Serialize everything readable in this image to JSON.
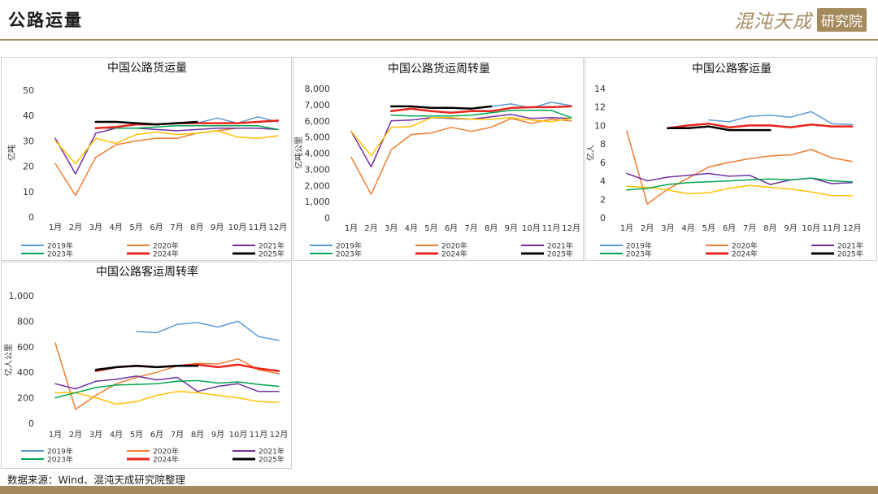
{
  "page": {
    "title": "公路运量",
    "logo_text": "混沌天成",
    "logo_seal": "研究院",
    "source": "数据来源：Wind、混沌天成研究院整理",
    "brand_color": "#a48a5c"
  },
  "chart_data": [
    {
      "type": "line",
      "title": "中国公路货运量",
      "ylabel": "亿吨",
      "ylim": [
        0,
        50
      ],
      "yticks": [
        0,
        10,
        20,
        30,
        40,
        50
      ],
      "ytick_labels": [
        "0",
        "10",
        "20",
        "30",
        "40",
        "50"
      ],
      "grid": false,
      "legend": "bottom",
      "categories": [
        "1月",
        "2月",
        "3月",
        "4月",
        "5月",
        "6月",
        "7月",
        "8月",
        "9月",
        "10月",
        "11月",
        "12月"
      ],
      "series": [
        {
          "name": "2019年",
          "color": "#5b9bd5",
          "width": 1.5,
          "values": [
            null,
            null,
            null,
            null,
            null,
            null,
            null,
            37,
            39,
            37,
            39.5,
            37.5
          ]
        },
        {
          "name": "2020年",
          "color": "#ed7d31",
          "width": 1.5,
          "values": [
            21,
            8.5,
            23.5,
            28.5,
            30,
            31,
            31,
            33,
            34,
            35,
            35,
            34.5
          ]
        },
        {
          "name": "2021年",
          "color": "#7030a0",
          "width": 1.5,
          "values": [
            31,
            17,
            33,
            35,
            35,
            34.5,
            34,
            34.5,
            35,
            35,
            35,
            34.5
          ]
        },
        {
          "name": "2022年",
          "color": "#ffc000",
          "width": 1.5,
          "values": [
            30,
            21,
            31,
            29,
            32.5,
            33.5,
            32.5,
            33,
            34,
            31.5,
            31,
            32
          ]
        },
        {
          "name": "2023年",
          "color": "#00a550",
          "width": 1.5,
          "values": [
            22,
            null,
            35,
            35,
            35,
            35.5,
            36,
            36,
            36,
            36,
            36,
            34.5
          ]
        },
        {
          "name": "2024年",
          "color": "#e8251d",
          "width": 2.5,
          "values": [
            null,
            null,
            35,
            35.5,
            36.5,
            36.5,
            37,
            37,
            37,
            37,
            37.5,
            38
          ]
        },
        {
          "name": "2025年",
          "color": "#000000",
          "width": 2.5,
          "values": [
            null,
            null,
            37.5,
            37.5,
            37,
            36.5,
            37,
            37.5,
            null,
            null,
            null,
            null
          ]
        }
      ]
    },
    {
      "type": "line",
      "title": "中国公路货运周转量",
      "ylabel": "亿吨公里",
      "ylim": [
        0,
        8000
      ],
      "yticks": [
        0,
        1000,
        2000,
        3000,
        4000,
        5000,
        6000,
        7000,
        8000
      ],
      "ytick_labels": [
        "0",
        "1,000",
        "2,000",
        "3,000",
        "4,000",
        "5,000",
        "6,000",
        "7,000",
        "8,000"
      ],
      "grid": false,
      "legend": "bottom",
      "categories": [
        "1月",
        "2月",
        "3月",
        "4月",
        "5月",
        "6月",
        "7月",
        "8月",
        "9月",
        "10月",
        "11月",
        "12月"
      ],
      "series": [
        {
          "name": "2019年",
          "color": "#5b9bd5",
          "width": 1.5,
          "values": [
            null,
            null,
            null,
            null,
            null,
            null,
            null,
            6900,
            7050,
            6800,
            7150,
            6950
          ]
        },
        {
          "name": "2020年",
          "color": "#ed7d31",
          "width": 1.5,
          "values": [
            3750,
            1450,
            4200,
            5150,
            5250,
            5600,
            5350,
            5600,
            6150,
            5850,
            6100,
            6000
          ]
        },
        {
          "name": "2021年",
          "color": "#7030a0",
          "width": 1.5,
          "values": [
            5350,
            3150,
            6000,
            6050,
            6200,
            6150,
            6100,
            6250,
            6400,
            6150,
            6200,
            6150
          ]
        },
        {
          "name": "2022年",
          "color": "#ffc000",
          "width": 1.5,
          "values": [
            5350,
            3850,
            5600,
            5650,
            6200,
            6200,
            6100,
            6100,
            6200,
            6050,
            5950,
            6150
          ]
        },
        {
          "name": "2023年",
          "color": "#00a550",
          "width": 1.5,
          "values": [
            4250,
            null,
            6350,
            6300,
            6300,
            6300,
            6350,
            6500,
            6650,
            6650,
            6650,
            6200
          ]
        },
        {
          "name": "2024年",
          "color": "#e8251d",
          "width": 2.5,
          "values": [
            null,
            null,
            6600,
            6750,
            6600,
            6500,
            6600,
            6600,
            6800,
            6850,
            6850,
            6900
          ]
        },
        {
          "name": "2025年",
          "color": "#000000",
          "width": 2.5,
          "values": [
            null,
            null,
            6900,
            6900,
            6800,
            6800,
            6750,
            6900,
            null,
            null,
            null,
            null
          ]
        }
      ]
    },
    {
      "type": "line",
      "title": "中国公路客运量",
      "ylabel": "亿人",
      "ylim": [
        0,
        14
      ],
      "yticks": [
        0,
        2,
        4,
        6,
        8,
        10,
        12,
        14
      ],
      "ytick_labels": [
        "0",
        "2",
        "4",
        "6",
        "8",
        "10",
        "12",
        "14"
      ],
      "grid": false,
      "legend": "bottom",
      "categories": [
        "1月",
        "2月",
        "3月",
        "4月",
        "5月",
        "6月",
        "7月",
        "8月",
        "9月",
        "10月",
        "11月",
        "12月"
      ],
      "series": [
        {
          "name": "2019年",
          "color": "#5b9bd5",
          "width": 1.5,
          "values": [
            null,
            null,
            null,
            null,
            10.6,
            10.4,
            11,
            11.1,
            10.9,
            11.5,
            10.2,
            10.1
          ]
        },
        {
          "name": "2020年",
          "color": "#ed7d31",
          "width": 1.5,
          "values": [
            9.4,
            1.5,
            3.1,
            4.3,
            5.5,
            6,
            6.4,
            6.7,
            6.8,
            7.4,
            6.5,
            6.1
          ]
        },
        {
          "name": "2021年",
          "color": "#7030a0",
          "width": 1.5,
          "values": [
            4.8,
            4,
            4.4,
            4.6,
            4.8,
            4.5,
            4.6,
            3.6,
            4.1,
            4.3,
            3.7,
            3.8
          ]
        },
        {
          "name": "2022年",
          "color": "#ffc000",
          "width": 1.5,
          "values": [
            3.4,
            3.3,
            3,
            2.6,
            2.7,
            3.2,
            3.5,
            3.3,
            3.1,
            2.8,
            2.4,
            2.4
          ]
        },
        {
          "name": "2023年",
          "color": "#00a550",
          "width": 1.5,
          "values": [
            3,
            3.2,
            3.6,
            3.8,
            3.9,
            4,
            4.1,
            4.2,
            4.1,
            4.3,
            4,
            3.9
          ]
        },
        {
          "name": "2024年",
          "color": "#e8251d",
          "width": 2.5,
          "values": [
            null,
            null,
            9.7,
            10,
            10.2,
            9.8,
            10,
            10,
            9.8,
            10.1,
            9.9,
            9.9
          ]
        },
        {
          "name": "2025年",
          "color": "#000000",
          "width": 2.5,
          "values": [
            null,
            null,
            9.7,
            9.7,
            9.9,
            9.5,
            9.5,
            9.5,
            null,
            null,
            null,
            null
          ]
        }
      ]
    },
    {
      "type": "line",
      "title": "中国公路客运周转率",
      "ylabel": "亿人公里",
      "ylim": [
        0,
        1000
      ],
      "yticks": [
        0,
        200,
        400,
        600,
        800,
        1000
      ],
      "ytick_labels": [
        "0",
        "200",
        "400",
        "600",
        "800",
        "1,000"
      ],
      "grid": false,
      "legend": "bottom",
      "categories": [
        "1月",
        "2月",
        "3月",
        "4月",
        "5月",
        "6月",
        "7月",
        "8月",
        "9月",
        "10月",
        "11月",
        "12月"
      ],
      "series": [
        {
          "name": "2019年",
          "color": "#5b9bd5",
          "width": 1.5,
          "values": [
            null,
            null,
            null,
            null,
            720,
            710,
            775,
            790,
            755,
            800,
            680,
            650
          ]
        },
        {
          "name": "2020年",
          "color": "#ed7d31",
          "width": 1.5,
          "values": [
            630,
            110,
            220,
            310,
            360,
            400,
            450,
            470,
            465,
            505,
            420,
            390
          ]
        },
        {
          "name": "2021年",
          "color": "#7030a0",
          "width": 1.5,
          "values": [
            310,
            270,
            330,
            345,
            370,
            340,
            360,
            250,
            290,
            310,
            250,
            250
          ]
        },
        {
          "name": "2022年",
          "color": "#ffc000",
          "width": 1.5,
          "values": [
            240,
            240,
            200,
            150,
            170,
            220,
            250,
            240,
            220,
            200,
            170,
            165
          ]
        },
        {
          "name": "2023年",
          "color": "#00a550",
          "width": 1.5,
          "values": [
            200,
            240,
            280,
            300,
            305,
            310,
            330,
            335,
            315,
            325,
            305,
            290
          ]
        },
        {
          "name": "2024年",
          "color": "#e8251d",
          "width": 2.5,
          "values": [
            null,
            null,
            410,
            440,
            450,
            440,
            450,
            460,
            440,
            460,
            430,
            410
          ]
        },
        {
          "name": "2025年",
          "color": "#000000",
          "width": 2.5,
          "values": [
            null,
            null,
            420,
            440,
            450,
            440,
            450,
            450,
            null,
            null,
            null,
            null
          ]
        }
      ]
    }
  ]
}
